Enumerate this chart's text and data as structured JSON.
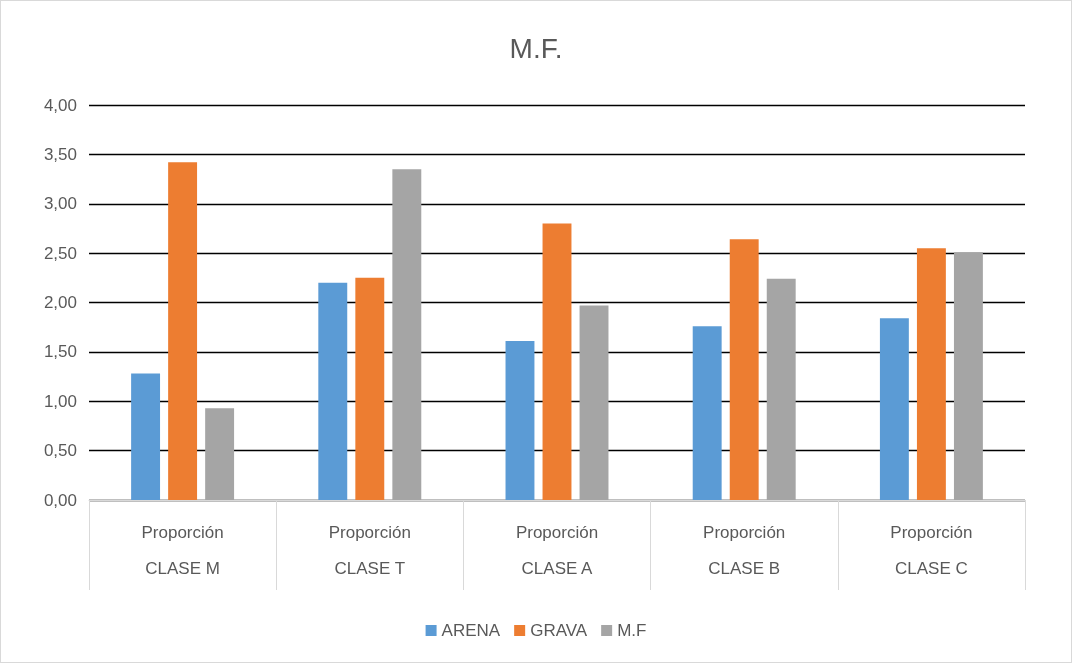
{
  "chart_data": {
    "type": "bar",
    "title": "M.F.",
    "categories": [
      "Proporción\nCLASE M",
      "Proporción\nCLASE T",
      "Proporción\nCLASE A",
      "Proporción\nCLASE B",
      "Proporción\nCLASE C"
    ],
    "series": [
      {
        "name": "ARENA",
        "color": "#5b9bd5",
        "values": [
          1.28,
          2.2,
          1.61,
          1.76,
          1.84
        ]
      },
      {
        "name": "GRAVA",
        "color": "#ed7d31",
        "values": [
          3.42,
          2.25,
          2.8,
          2.64,
          2.55
        ]
      },
      {
        "name": "M.F",
        "color": "#a5a5a5",
        "values": [
          0.93,
          3.35,
          1.97,
          2.24,
          2.51
        ]
      }
    ],
    "ylim": [
      0,
      4
    ],
    "yticks": [
      {
        "value": 0,
        "label": "0,00"
      },
      {
        "value": 0.5,
        "label": "0,50"
      },
      {
        "value": 1,
        "label": "1,00"
      },
      {
        "value": 1.5,
        "label": "1,50"
      },
      {
        "value": 2,
        "label": "2,00"
      },
      {
        "value": 2.5,
        "label": "2,50"
      },
      {
        "value": 3,
        "label": "3,00"
      },
      {
        "value": 3.5,
        "label": "3,50"
      },
      {
        "value": 4,
        "label": "4,00"
      }
    ],
    "grid": "y",
    "legend": "bottom"
  }
}
